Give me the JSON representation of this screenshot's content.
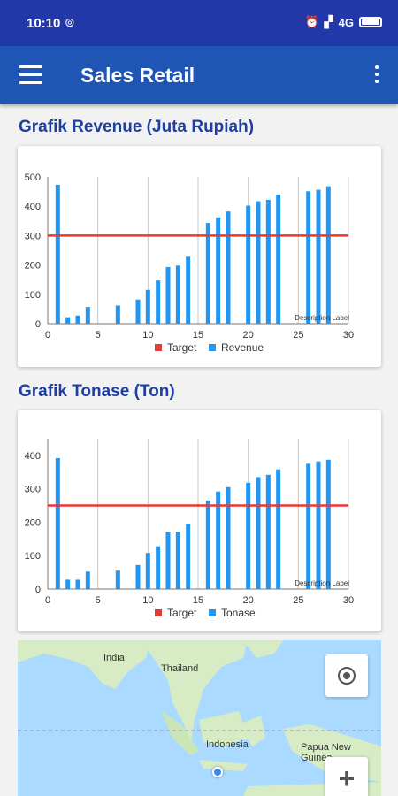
{
  "status_bar": {
    "time": "10:10",
    "sync_icon": "sync-icon",
    "network": "4G",
    "icons": [
      "alarm-icon",
      "signal-icon",
      "battery-icon"
    ]
  },
  "app_bar": {
    "title": "Sales Retail",
    "menu_icon": "hamburger-icon",
    "overflow_icon": "more-vert-icon"
  },
  "colors": {
    "status_bar": "#2238a8",
    "app_bar": "#1f55b5",
    "section_title": "#1f3fa0",
    "bar": "#2196f3",
    "target_line": "#e53935"
  },
  "revenue_section": {
    "title": "Grafik Revenue (Juta Rupiah)"
  },
  "tonase_section": {
    "title": "Grafik Tonase (Ton)"
  },
  "chart_data": [
    {
      "type": "bar",
      "description_label": "Description Label",
      "x": [
        1,
        2,
        3,
        4,
        7,
        9,
        10,
        11,
        12,
        13,
        14,
        16,
        17,
        18,
        20,
        21,
        22,
        23,
        26,
        27,
        28
      ],
      "series": [
        {
          "name": "Target",
          "type": "line",
          "value": 300,
          "color": "#e53935"
        },
        {
          "name": "Revenue",
          "values": [
            473,
            22,
            28,
            57,
            62,
            82,
            115,
            147,
            193,
            198,
            228,
            343,
            362,
            382,
            402,
            417,
            422,
            440,
            451,
            456,
            468
          ],
          "color": "#2196f3"
        }
      ],
      "x_ticks": [
        0,
        5,
        10,
        15,
        20,
        25,
        30
      ],
      "y_ticks": [
        0,
        100,
        200,
        300,
        400,
        500
      ],
      "xlim": [
        0,
        30
      ],
      "ylim": [
        0,
        500
      ],
      "legend": "bottom-center",
      "grid": "vertical"
    },
    {
      "type": "bar",
      "description_label": "Description Label",
      "x": [
        1,
        2,
        3,
        4,
        7,
        9,
        10,
        11,
        12,
        13,
        14,
        16,
        17,
        18,
        20,
        21,
        22,
        23,
        26,
        27,
        28
      ],
      "series": [
        {
          "name": "Target",
          "type": "line",
          "value": 250,
          "color": "#e53935"
        },
        {
          "name": "Tonase",
          "values": [
            392,
            28,
            28,
            52,
            55,
            72,
            108,
            128,
            172,
            172,
            195,
            265,
            292,
            305,
            318,
            335,
            342,
            358,
            375,
            382,
            387
          ],
          "color": "#2196f3"
        }
      ],
      "x_ticks": [
        0,
        5,
        10,
        15,
        20,
        25,
        30
      ],
      "y_ticks": [
        0,
        100,
        200,
        300,
        400
      ],
      "xlim": [
        0,
        30
      ],
      "ylim": [
        0,
        450
      ],
      "legend": "bottom-center",
      "grid": "vertical"
    }
  ],
  "map": {
    "labels": [
      "India",
      "Thailand",
      "Indonesia",
      "Papua New Guinea"
    ],
    "my_location_icon": "my-location-icon",
    "zoom_in_icon": "plus-icon"
  }
}
